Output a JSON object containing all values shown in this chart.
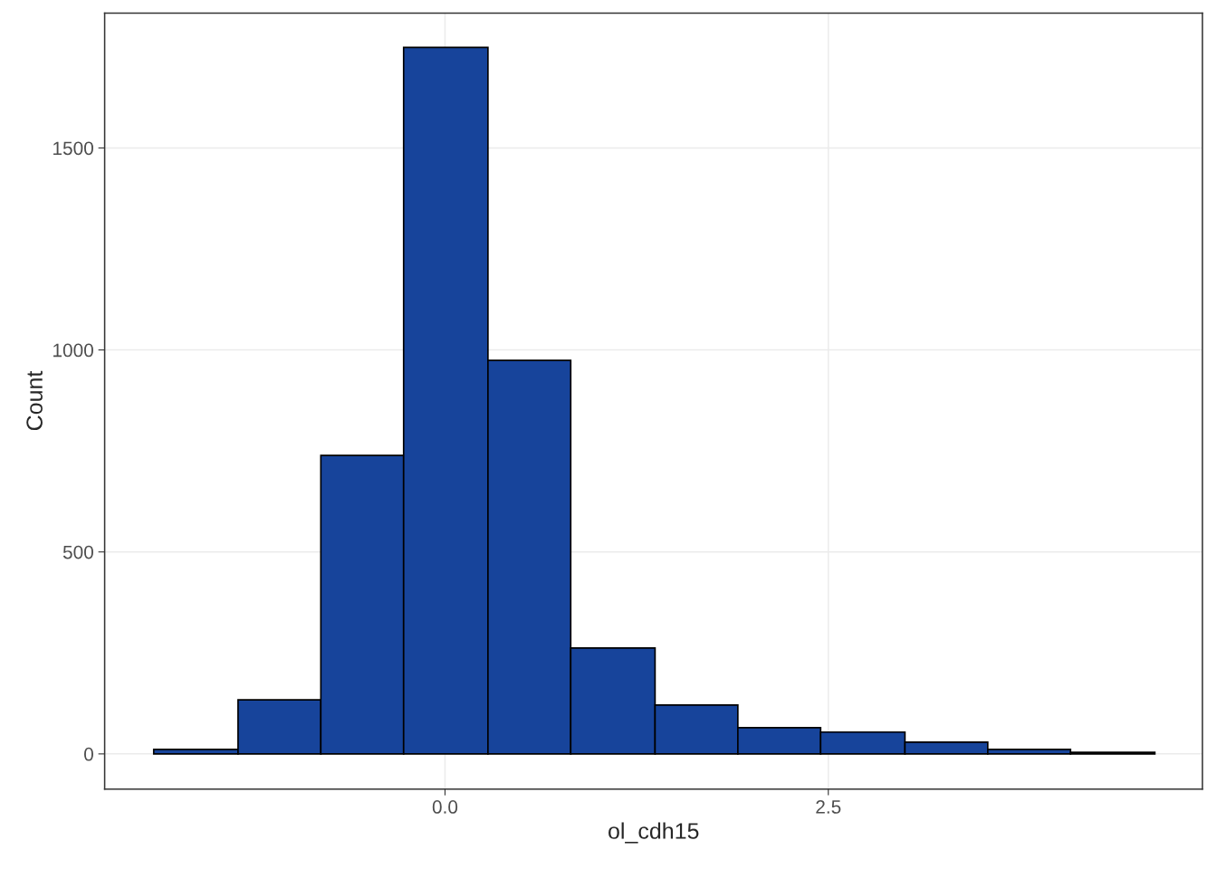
{
  "chart_data": {
    "type": "histogram",
    "xlabel": "ol_cdh15",
    "ylabel": "Count",
    "bins": [
      -1.9,
      -1.35,
      -0.81,
      -0.27,
      0.28,
      0.82,
      1.37,
      1.91,
      2.45,
      3.0,
      3.54,
      4.08,
      4.63
    ],
    "values": [
      11,
      134,
      739,
      1749,
      974,
      262,
      121,
      65,
      54,
      29,
      11,
      4
    ],
    "color": "#17449b",
    "xlim": [
      -2.22,
      4.94
    ],
    "ylim": [
      -87,
      1834
    ],
    "xticks": [
      {
        "value": 0,
        "label": "0.0"
      },
      2.5
    ],
    "yticks": [
      0,
      500,
      1000,
      1500
    ],
    "grid": true
  }
}
